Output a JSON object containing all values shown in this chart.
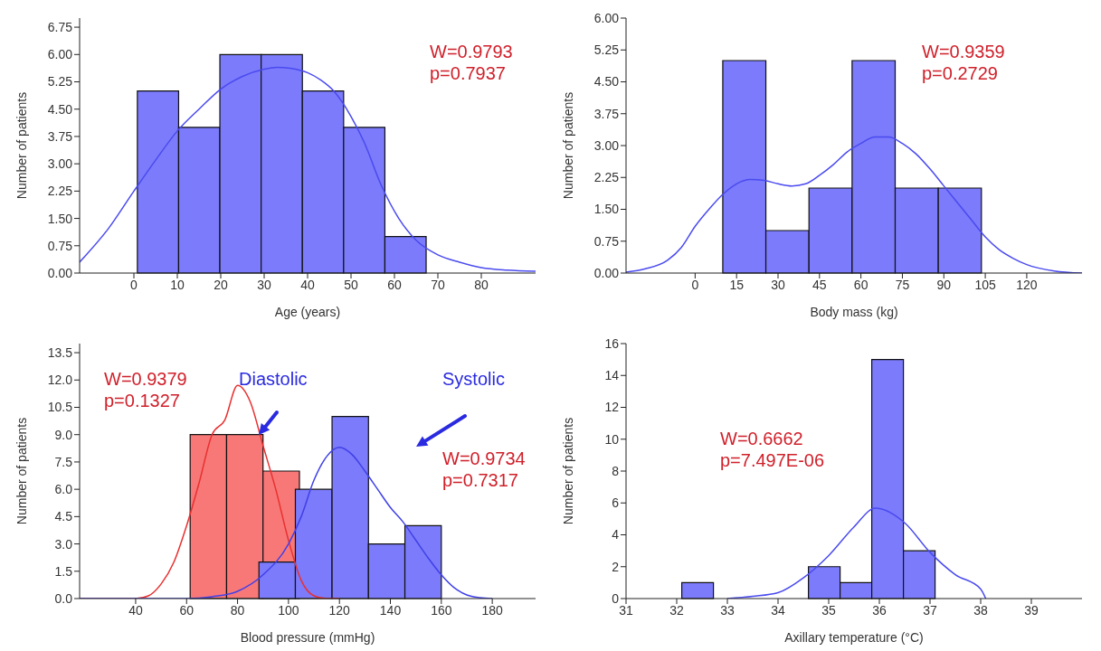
{
  "chart_data": [
    {
      "type": "histogram",
      "xlabel": "Age (years)",
      "ylabel": "Number of patients",
      "xlim": [
        -12.5,
        92.5
      ],
      "xticks": [
        0,
        10,
        20,
        30,
        40,
        50,
        60,
        70,
        80
      ],
      "ylim": [
        0,
        7
      ],
      "yticks": [
        {
          "value": 0,
          "label": "0.00"
        },
        {
          "value": 0.75,
          "label": "0.75"
        },
        {
          "value": 1.5,
          "label": "1.50"
        },
        {
          "value": 2.25,
          "label": "2.25"
        },
        {
          "value": 3,
          "label": "3.00"
        },
        {
          "value": 3.75,
          "label": "3.75"
        },
        {
          "value": 4.5,
          "label": "4.50"
        },
        {
          "value": 5.25,
          "label": "5.25"
        },
        {
          "value": 6,
          "label": "6.00"
        },
        {
          "value": 6.75,
          "label": "6.75"
        }
      ],
      "annotations": [
        "W=0.9793",
        "p=0.7937"
      ],
      "series": [
        {
          "type": "histogram",
          "color": "#7b7bfb",
          "bins": [
            0.8,
            10.3,
            19.8,
            29.3,
            38.8,
            48.3,
            57.8,
            67.3
          ],
          "values": [
            5,
            4,
            6,
            6,
            5,
            4,
            1
          ]
        },
        {
          "type": "line",
          "color": "#4a4af0",
          "x": [
            -12.5,
            -6,
            0,
            5,
            10,
            15,
            20,
            25,
            30,
            33,
            36,
            40,
            43,
            46,
            50,
            53,
            57,
            61,
            65,
            70,
            75,
            80,
            86,
            92.5
          ],
          "values": [
            0.3,
            1.2,
            2.25,
            3.1,
            3.9,
            4.5,
            5.05,
            5.4,
            5.6,
            5.65,
            5.62,
            5.5,
            5.3,
            5.0,
            4.3,
            3.6,
            2.4,
            1.5,
            0.9,
            0.5,
            0.3,
            0.15,
            0.08,
            0.05
          ]
        }
      ]
    },
    {
      "type": "histogram",
      "xlabel": "Body mass (kg)",
      "ylabel": "Number of patients",
      "xlim": [
        -25,
        140
      ],
      "xticks": [
        0,
        15,
        30,
        45,
        60,
        75,
        90,
        105,
        120
      ],
      "ylim": [
        0,
        6
      ],
      "yticks": [
        {
          "value": 0,
          "label": "0.00"
        },
        {
          "value": 0.75,
          "label": "0.75"
        },
        {
          "value": 1.5,
          "label": "1.50"
        },
        {
          "value": 2.25,
          "label": "2.25"
        },
        {
          "value": 3,
          "label": "3.00"
        },
        {
          "value": 3.75,
          "label": "3.75"
        },
        {
          "value": 4.5,
          "label": "4.50"
        },
        {
          "value": 5.25,
          "label": "5.25"
        },
        {
          "value": 6,
          "label": "6.00"
        }
      ],
      "annotations": [
        "W=0.9359",
        "p=0.2729"
      ],
      "series": [
        {
          "type": "histogram",
          "color": "#7b7bfb",
          "bins": [
            10,
            25.6,
            41.2,
            56.8,
            72.4,
            88,
            103.6
          ],
          "values": [
            5,
            1,
            2,
            5,
            2,
            2
          ]
        },
        {
          "type": "line",
          "color": "#4a4af0",
          "x": [
            -25,
            -18,
            -10,
            -5,
            0,
            5,
            10,
            15,
            20,
            25,
            30,
            35,
            40,
            45,
            50,
            55,
            60,
            65,
            70,
            75,
            80,
            85,
            90,
            95,
            100,
            105,
            110,
            115,
            120,
            130,
            140
          ],
          "values": [
            0.02,
            0.1,
            0.3,
            0.6,
            1.1,
            1.5,
            1.85,
            2.1,
            2.2,
            2.18,
            2.1,
            2.05,
            2.1,
            2.3,
            2.55,
            2.85,
            3.05,
            3.2,
            3.2,
            3.05,
            2.8,
            2.45,
            2.05,
            1.65,
            1.25,
            0.85,
            0.55,
            0.35,
            0.2,
            0.05,
            0
          ]
        }
      ]
    },
    {
      "type": "histogram",
      "xlabel": "Blood pressure (mmHg)",
      "ylabel": "Number of patients",
      "xlim": [
        18,
        197
      ],
      "xticks": [
        40,
        60,
        80,
        100,
        120,
        140,
        160,
        180
      ],
      "ylim": [
        0,
        14
      ],
      "yticks": [
        {
          "value": 0,
          "label": "0.0"
        },
        {
          "value": 1.5,
          "label": "1.5"
        },
        {
          "value": 3,
          "label": "3.0"
        },
        {
          "value": 4.5,
          "label": "4.5"
        },
        {
          "value": 6,
          "label": "6.0"
        },
        {
          "value": 7.5,
          "label": "7.5"
        },
        {
          "value": 9,
          "label": "9.0"
        },
        {
          "value": 10.5,
          "label": "10.5"
        },
        {
          "value": 12,
          "label": "12.0"
        },
        {
          "value": 13.5,
          "label": "13.5"
        }
      ],
      "annotations": [
        "W=0.9379",
        "p=0.1327",
        "Diastolic",
        "Systolic",
        "W=0.9734",
        "p=0.7317"
      ],
      "series": [
        {
          "type": "histogram",
          "color": "#f87878",
          "bins": [
            61.4,
            75.7,
            90,
            104.3
          ],
          "values": [
            9,
            9,
            7
          ]
        },
        {
          "type": "histogram",
          "color": "#7b7bfb",
          "bins": [
            88.4,
            102.7,
            117.1,
            131.4,
            145.7,
            160
          ],
          "values": [
            2,
            6,
            10,
            3,
            4
          ]
        },
        {
          "type": "line",
          "color": "#e83030",
          "x": [
            18,
            40,
            45,
            50,
            55,
            60,
            65,
            70,
            75,
            80,
            85,
            90,
            95,
            100,
            105,
            110,
            115,
            120
          ],
          "values": [
            0,
            0,
            0.15,
            0.8,
            2.0,
            4.0,
            6.4,
            9.0,
            9.8,
            11.7,
            10.8,
            8.4,
            6.0,
            3.2,
            1.0,
            0.15,
            0,
            0
          ]
        },
        {
          "type": "line",
          "color": "#4040e8",
          "x": [
            18,
            60,
            70,
            80,
            90,
            100,
            105,
            110,
            115,
            120,
            125,
            130,
            135,
            140,
            145,
            150,
            155,
            160,
            165,
            170,
            175,
            180
          ],
          "values": [
            0,
            0,
            0.1,
            0.4,
            1.3,
            3.0,
            4.5,
            6.5,
            7.8,
            8.3,
            7.9,
            7.0,
            6.0,
            5.0,
            4.2,
            3.2,
            2.2,
            1.3,
            0.6,
            0.2,
            0.05,
            0
          ]
        }
      ]
    },
    {
      "type": "histogram",
      "xlabel": "Axillary temperature (°C)",
      "ylabel": "Number of patients",
      "xlim": [
        31,
        40
      ],
      "xticks": [
        31,
        32,
        33,
        34,
        35,
        36,
        37,
        38,
        39
      ],
      "ylim": [
        0,
        16
      ],
      "yticks": [
        0,
        2,
        4,
        6,
        8,
        10,
        12,
        14,
        16
      ],
      "annotations": [
        "W=0.6662",
        "p=7.497E-06"
      ],
      "series": [
        {
          "type": "histogram",
          "color": "#7b7bfb",
          "bins": [
            32.1,
            32.725,
            33.35,
            33.975,
            34.6,
            35.225,
            35.85,
            36.475,
            37.1
          ],
          "values": [
            1,
            0,
            0,
            0,
            2,
            1,
            15,
            3
          ]
        },
        {
          "type": "line",
          "color": "#4a4af0",
          "x": [
            33,
            33.5,
            34,
            34.5,
            35,
            35.5,
            35.92,
            36.5,
            37,
            37.5,
            38,
            38.1
          ],
          "values": [
            0,
            0.14,
            0.37,
            1.3,
            2.7,
            4.5,
            5.67,
            4.75,
            2.9,
            1.5,
            0.6,
            0
          ]
        }
      ]
    }
  ]
}
